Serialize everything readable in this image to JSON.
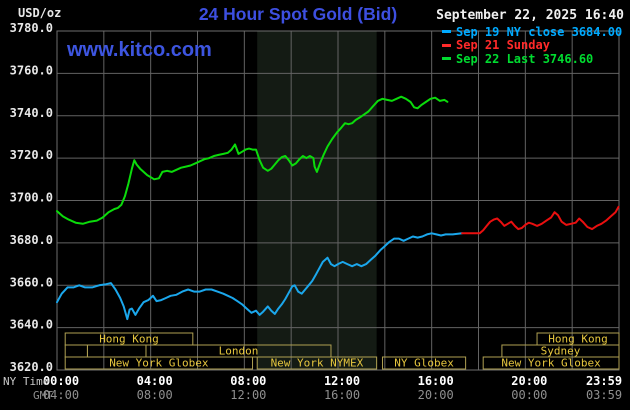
{
  "header": {
    "units_label": "USD/oz",
    "title": "24 Hour Spot Gold (Bid)",
    "datetime": "September 22, 2025 16:40"
  },
  "watermark": "www.kitco.com",
  "legend": [
    {
      "color": "#00AAFF",
      "label": "Sep 19 NY close 3684.00"
    },
    {
      "color": "#FF2A2A",
      "label": "Sep 21 Sunday"
    },
    {
      "color": "#00DC30",
      "label": "Sep 22 Last 3746.60"
    }
  ],
  "colors": {
    "background": "#000000",
    "grid": "#636363",
    "plot_border": "#6E6E6E",
    "shaded_band": "#141B14",
    "session_border": "#AFA052",
    "session_label": "#E6C63E",
    "y_tick_text": "#E8E8E8",
    "ny_tick_text": "#FFFFFF",
    "gmt_tick_text": "#8F8F8F",
    "axis_row_label": "#C9C9C9",
    "title_blue": "#3D4FE0",
    "watermark_blue": "#3D55E0"
  },
  "chart_data": {
    "type": "line",
    "title": "24 Hour Spot Gold (Bid)",
    "ylabel": "USD/oz",
    "ylim": [
      3620,
      3780
    ],
    "y_ticks": [
      3780,
      3760,
      3740,
      3720,
      3700,
      3680,
      3660,
      3640,
      3620
    ],
    "grid": "on",
    "legend_position": "top-right",
    "x_axis": {
      "ny_row_label": "NY Time",
      "gmt_row_label": "GMT",
      "grid_step_hours": 2,
      "ticks": [
        {
          "h": 0,
          "ny": "00:00",
          "gmt": "04:00"
        },
        {
          "h": 4,
          "ny": "04:00",
          "gmt": "08:00"
        },
        {
          "h": 8,
          "ny": "08:00",
          "gmt": "12:00"
        },
        {
          "h": 12,
          "ny": "12:00",
          "gmt": "16:00"
        },
        {
          "h": 16,
          "ny": "16:00",
          "gmt": "20:00"
        },
        {
          "h": 20,
          "ny": "20:00",
          "gmt": "00:00"
        },
        {
          "h": 24,
          "ny": "23:59",
          "gmt": "03:59"
        }
      ]
    },
    "shaded_band_hours": [
      8.55,
      13.65
    ],
    "sessions": [
      {
        "row": 0,
        "from_h": 0.35,
        "to_h": 5.8,
        "label": "Hong Kong"
      },
      {
        "row": 0,
        "from_h": 20.5,
        "to_h": 24,
        "label": "Hong Kong"
      },
      {
        "row": 1,
        "from_h": 0.35,
        "to_h": 1.3,
        "label": ""
      },
      {
        "row": 1,
        "from_h": 1.3,
        "to_h": 3.8,
        "label": ""
      },
      {
        "row": 1,
        "from_h": 3.8,
        "to_h": 11.7,
        "label": "London"
      },
      {
        "row": 1,
        "from_h": 19.0,
        "to_h": 24,
        "label": "Sydney"
      },
      {
        "row": 2,
        "from_h": 0.35,
        "to_h": 8.35,
        "label": "New York Globex"
      },
      {
        "row": 2,
        "from_h": 8.55,
        "to_h": 13.65,
        "label": "New York NYMEX"
      },
      {
        "row": 2,
        "from_h": 13.9,
        "to_h": 17.45,
        "label": "NY Globex"
      },
      {
        "row": 2,
        "from_h": 18.2,
        "to_h": 24,
        "label": "New York Globex"
      }
    ],
    "series": [
      {
        "name": "Sep 19 NY close 3684.00",
        "color": "#1BA7EC",
        "points": [
          [
            0,
            3652
          ],
          [
            0.2,
            3656
          ],
          [
            0.45,
            3659
          ],
          [
            0.7,
            3659
          ],
          [
            0.95,
            3660
          ],
          [
            1.2,
            3659
          ],
          [
            1.5,
            3659
          ],
          [
            1.8,
            3660
          ],
          [
            2.1,
            3660.5
          ],
          [
            2.3,
            3661
          ],
          [
            2.5,
            3658
          ],
          [
            2.7,
            3654
          ],
          [
            2.85,
            3650
          ],
          [
            3.0,
            3644
          ],
          [
            3.1,
            3648.5
          ],
          [
            3.2,
            3649
          ],
          [
            3.35,
            3646
          ],
          [
            3.5,
            3649
          ],
          [
            3.7,
            3652
          ],
          [
            3.9,
            3653
          ],
          [
            4.1,
            3655
          ],
          [
            4.25,
            3652.5
          ],
          [
            4.45,
            3653
          ],
          [
            4.65,
            3654
          ],
          [
            4.85,
            3655
          ],
          [
            5.1,
            3655.5
          ],
          [
            5.35,
            3657
          ],
          [
            5.6,
            3658
          ],
          [
            5.85,
            3657
          ],
          [
            6.1,
            3657
          ],
          [
            6.35,
            3658
          ],
          [
            6.6,
            3658
          ],
          [
            6.85,
            3657
          ],
          [
            7.1,
            3656
          ],
          [
            7.3,
            3655
          ],
          [
            7.5,
            3654
          ],
          [
            7.7,
            3652.5
          ],
          [
            7.9,
            3651
          ],
          [
            8.1,
            3649
          ],
          [
            8.3,
            3647
          ],
          [
            8.5,
            3648
          ],
          [
            8.65,
            3646
          ],
          [
            8.8,
            3647.5
          ],
          [
            9.0,
            3650
          ],
          [
            9.15,
            3648
          ],
          [
            9.3,
            3646.5
          ],
          [
            9.45,
            3649
          ],
          [
            9.6,
            3651
          ],
          [
            9.75,
            3653.5
          ],
          [
            9.9,
            3656.5
          ],
          [
            10.05,
            3659.5
          ],
          [
            10.15,
            3660
          ],
          [
            10.3,
            3657
          ],
          [
            10.45,
            3656
          ],
          [
            10.6,
            3658
          ],
          [
            10.75,
            3660
          ],
          [
            10.9,
            3662
          ],
          [
            11.05,
            3665
          ],
          [
            11.2,
            3668
          ],
          [
            11.35,
            3671
          ],
          [
            11.55,
            3673
          ],
          [
            11.7,
            3670
          ],
          [
            11.85,
            3669
          ],
          [
            12.0,
            3670
          ],
          [
            12.2,
            3671
          ],
          [
            12.4,
            3670
          ],
          [
            12.6,
            3669
          ],
          [
            12.8,
            3670
          ],
          [
            13.0,
            3669
          ],
          [
            13.2,
            3670
          ],
          [
            13.4,
            3672
          ],
          [
            13.6,
            3674
          ],
          [
            13.8,
            3676.5
          ],
          [
            14.0,
            3678.5
          ],
          [
            14.2,
            3680.5
          ],
          [
            14.4,
            3682
          ],
          [
            14.6,
            3682
          ],
          [
            14.8,
            3681
          ],
          [
            15.0,
            3682
          ],
          [
            15.2,
            3683
          ],
          [
            15.4,
            3682.5
          ],
          [
            15.6,
            3683
          ],
          [
            15.8,
            3684
          ],
          [
            16.0,
            3684.5
          ],
          [
            16.2,
            3684
          ],
          [
            16.4,
            3683.5
          ],
          [
            16.6,
            3684
          ],
          [
            16.9,
            3684
          ],
          [
            17.3,
            3684.5
          ]
        ]
      },
      {
        "name": "Sep 21 Sunday",
        "color": "#EA0F0F",
        "points": [
          [
            17.3,
            3684.5
          ],
          [
            17.7,
            3684.5
          ],
          [
            18.05,
            3684.5
          ],
          [
            18.2,
            3686
          ],
          [
            18.35,
            3688
          ],
          [
            18.5,
            3690
          ],
          [
            18.65,
            3691
          ],
          [
            18.8,
            3691.5
          ],
          [
            18.95,
            3690
          ],
          [
            19.1,
            3688
          ],
          [
            19.25,
            3689
          ],
          [
            19.4,
            3690
          ],
          [
            19.55,
            3688
          ],
          [
            19.7,
            3686.5
          ],
          [
            19.85,
            3687
          ],
          [
            20.0,
            3688.5
          ],
          [
            20.15,
            3689.5
          ],
          [
            20.3,
            3689
          ],
          [
            20.5,
            3688
          ],
          [
            20.7,
            3689
          ],
          [
            20.9,
            3690.5
          ],
          [
            21.1,
            3692
          ],
          [
            21.25,
            3694.5
          ],
          [
            21.4,
            3693
          ],
          [
            21.55,
            3690
          ],
          [
            21.75,
            3688.5
          ],
          [
            21.95,
            3689
          ],
          [
            22.15,
            3689.5
          ],
          [
            22.3,
            3691.5
          ],
          [
            22.45,
            3690
          ],
          [
            22.65,
            3687.5
          ],
          [
            22.85,
            3686.5
          ],
          [
            23.05,
            3688
          ],
          [
            23.25,
            3689
          ],
          [
            23.45,
            3690.5
          ],
          [
            23.65,
            3692.5
          ],
          [
            23.85,
            3694.5
          ],
          [
            23.98,
            3697
          ]
        ]
      },
      {
        "name": "Sep 22 Last 3746.60",
        "color": "#0BDB0B",
        "points": [
          [
            0,
            3695
          ],
          [
            0.25,
            3692.5
          ],
          [
            0.5,
            3691
          ],
          [
            0.8,
            3689.5
          ],
          [
            1.1,
            3689
          ],
          [
            1.4,
            3690
          ],
          [
            1.7,
            3690.5
          ],
          [
            1.95,
            3692
          ],
          [
            2.2,
            3694.5
          ],
          [
            2.45,
            3696
          ],
          [
            2.6,
            3696.5
          ],
          [
            2.75,
            3698
          ],
          [
            2.9,
            3702
          ],
          [
            3.05,
            3708
          ],
          [
            3.2,
            3715
          ],
          [
            3.3,
            3719
          ],
          [
            3.4,
            3717
          ],
          [
            3.55,
            3715
          ],
          [
            3.7,
            3713.5
          ],
          [
            3.85,
            3712
          ],
          [
            4.0,
            3711
          ],
          [
            4.15,
            3710
          ],
          [
            4.35,
            3710.5
          ],
          [
            4.5,
            3713.5
          ],
          [
            4.7,
            3714
          ],
          [
            4.9,
            3713.5
          ],
          [
            5.1,
            3714.5
          ],
          [
            5.3,
            3715.5
          ],
          [
            5.5,
            3716
          ],
          [
            5.7,
            3716.5
          ],
          [
            5.9,
            3717.5
          ],
          [
            6.1,
            3718.5
          ],
          [
            6.3,
            3719.5
          ],
          [
            6.5,
            3720
          ],
          [
            6.7,
            3721
          ],
          [
            6.9,
            3721.5
          ],
          [
            7.1,
            3722
          ],
          [
            7.3,
            3722.5
          ],
          [
            7.45,
            3724
          ],
          [
            7.6,
            3726.5
          ],
          [
            7.75,
            3722
          ],
          [
            7.9,
            3723
          ],
          [
            8.05,
            3724
          ],
          [
            8.2,
            3724.5
          ],
          [
            8.35,
            3724
          ],
          [
            8.5,
            3724
          ],
          [
            8.65,
            3719
          ],
          [
            8.8,
            3715.5
          ],
          [
            9.0,
            3714
          ],
          [
            9.15,
            3715
          ],
          [
            9.3,
            3717
          ],
          [
            9.45,
            3719
          ],
          [
            9.6,
            3720.5
          ],
          [
            9.75,
            3721
          ],
          [
            9.9,
            3719
          ],
          [
            10.05,
            3716.5
          ],
          [
            10.2,
            3717.5
          ],
          [
            10.35,
            3719.5
          ],
          [
            10.5,
            3721
          ],
          [
            10.65,
            3720
          ],
          [
            10.8,
            3721
          ],
          [
            10.95,
            3720
          ],
          [
            11.0,
            3716
          ],
          [
            11.1,
            3713.5
          ],
          [
            11.25,
            3718
          ],
          [
            11.4,
            3722
          ],
          [
            11.55,
            3725.5
          ],
          [
            11.75,
            3729
          ],
          [
            11.95,
            3732
          ],
          [
            12.15,
            3734.5
          ],
          [
            12.3,
            3736.5
          ],
          [
            12.45,
            3736
          ],
          [
            12.6,
            3736.5
          ],
          [
            12.75,
            3738
          ],
          [
            12.9,
            3739
          ],
          [
            13.1,
            3740.5
          ],
          [
            13.3,
            3742
          ],
          [
            13.5,
            3744.5
          ],
          [
            13.7,
            3747
          ],
          [
            13.9,
            3748
          ],
          [
            14.1,
            3747.5
          ],
          [
            14.3,
            3747
          ],
          [
            14.5,
            3748
          ],
          [
            14.7,
            3749
          ],
          [
            14.9,
            3748
          ],
          [
            15.1,
            3746.5
          ],
          [
            15.25,
            3744
          ],
          [
            15.4,
            3743.5
          ],
          [
            15.55,
            3745
          ],
          [
            15.75,
            3746.5
          ],
          [
            15.95,
            3748
          ],
          [
            16.15,
            3748.5
          ],
          [
            16.35,
            3747
          ],
          [
            16.55,
            3747.5
          ],
          [
            16.67,
            3746.6
          ]
        ]
      }
    ]
  }
}
